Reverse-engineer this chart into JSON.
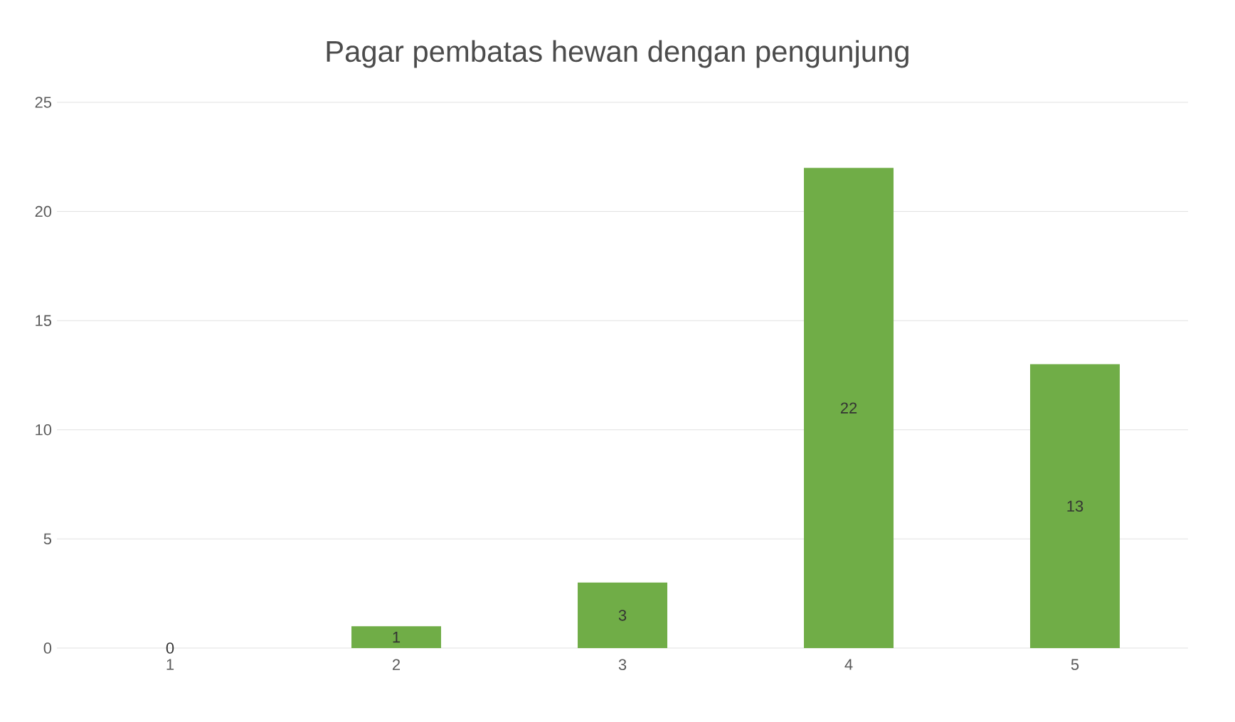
{
  "chart_data": {
    "type": "bar",
    "title": "Pagar pembatas hewan dengan pengunjung",
    "categories": [
      "1",
      "2",
      "3",
      "4",
      "5"
    ],
    "values": [
      0,
      1,
      3,
      22,
      13
    ],
    "color": "#70ad47",
    "ylim": [
      0,
      25
    ],
    "yticks": [
      0,
      5,
      10,
      15,
      20,
      25
    ],
    "grid": "y",
    "data_labels": true
  }
}
